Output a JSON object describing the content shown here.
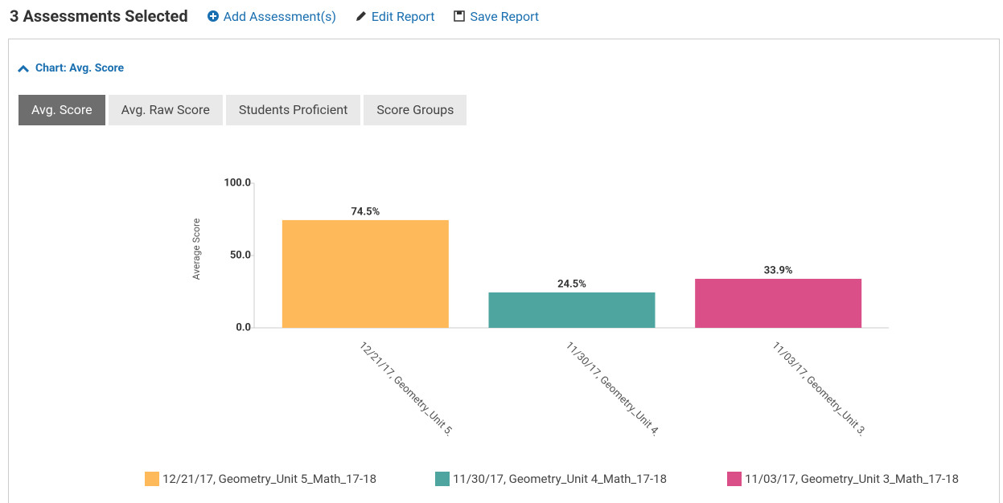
{
  "header": {
    "title": "3 Assessments Selected",
    "actions": [
      "Add Assessment(s)",
      "Edit Report",
      "Save Report"
    ]
  },
  "section": {
    "toggle": "Chart: Avg. Score",
    "tabs": [
      "Avg. Score",
      "Avg. Raw Score",
      "Students Proficient",
      "Score Groups"
    ],
    "active_tab": 0
  },
  "chart_data": {
    "type": "bar",
    "ylabel": "Average Score",
    "categories": [
      "12/21/17, Geometry_Unit 5_Math_17-18",
      "11/30/17, Geometry_Unit 4_Math_17-18",
      "11/03/17, Geometry_Unit 3_Math_17-18"
    ],
    "values": [
      74.5,
      24.5,
      33.9
    ],
    "value_labels": [
      "74.5%",
      "24.5%",
      "33.9%"
    ],
    "colors": [
      "#fdb95a",
      "#4ea5a0",
      "#db4f88"
    ],
    "ylim": [
      0,
      100
    ],
    "yticks": [
      {
        "value": 0,
        "label": "0.0"
      },
      {
        "value": 50,
        "label": "50.0"
      },
      {
        "value": 100,
        "label": "100.0"
      }
    ],
    "legend": "bottom"
  }
}
